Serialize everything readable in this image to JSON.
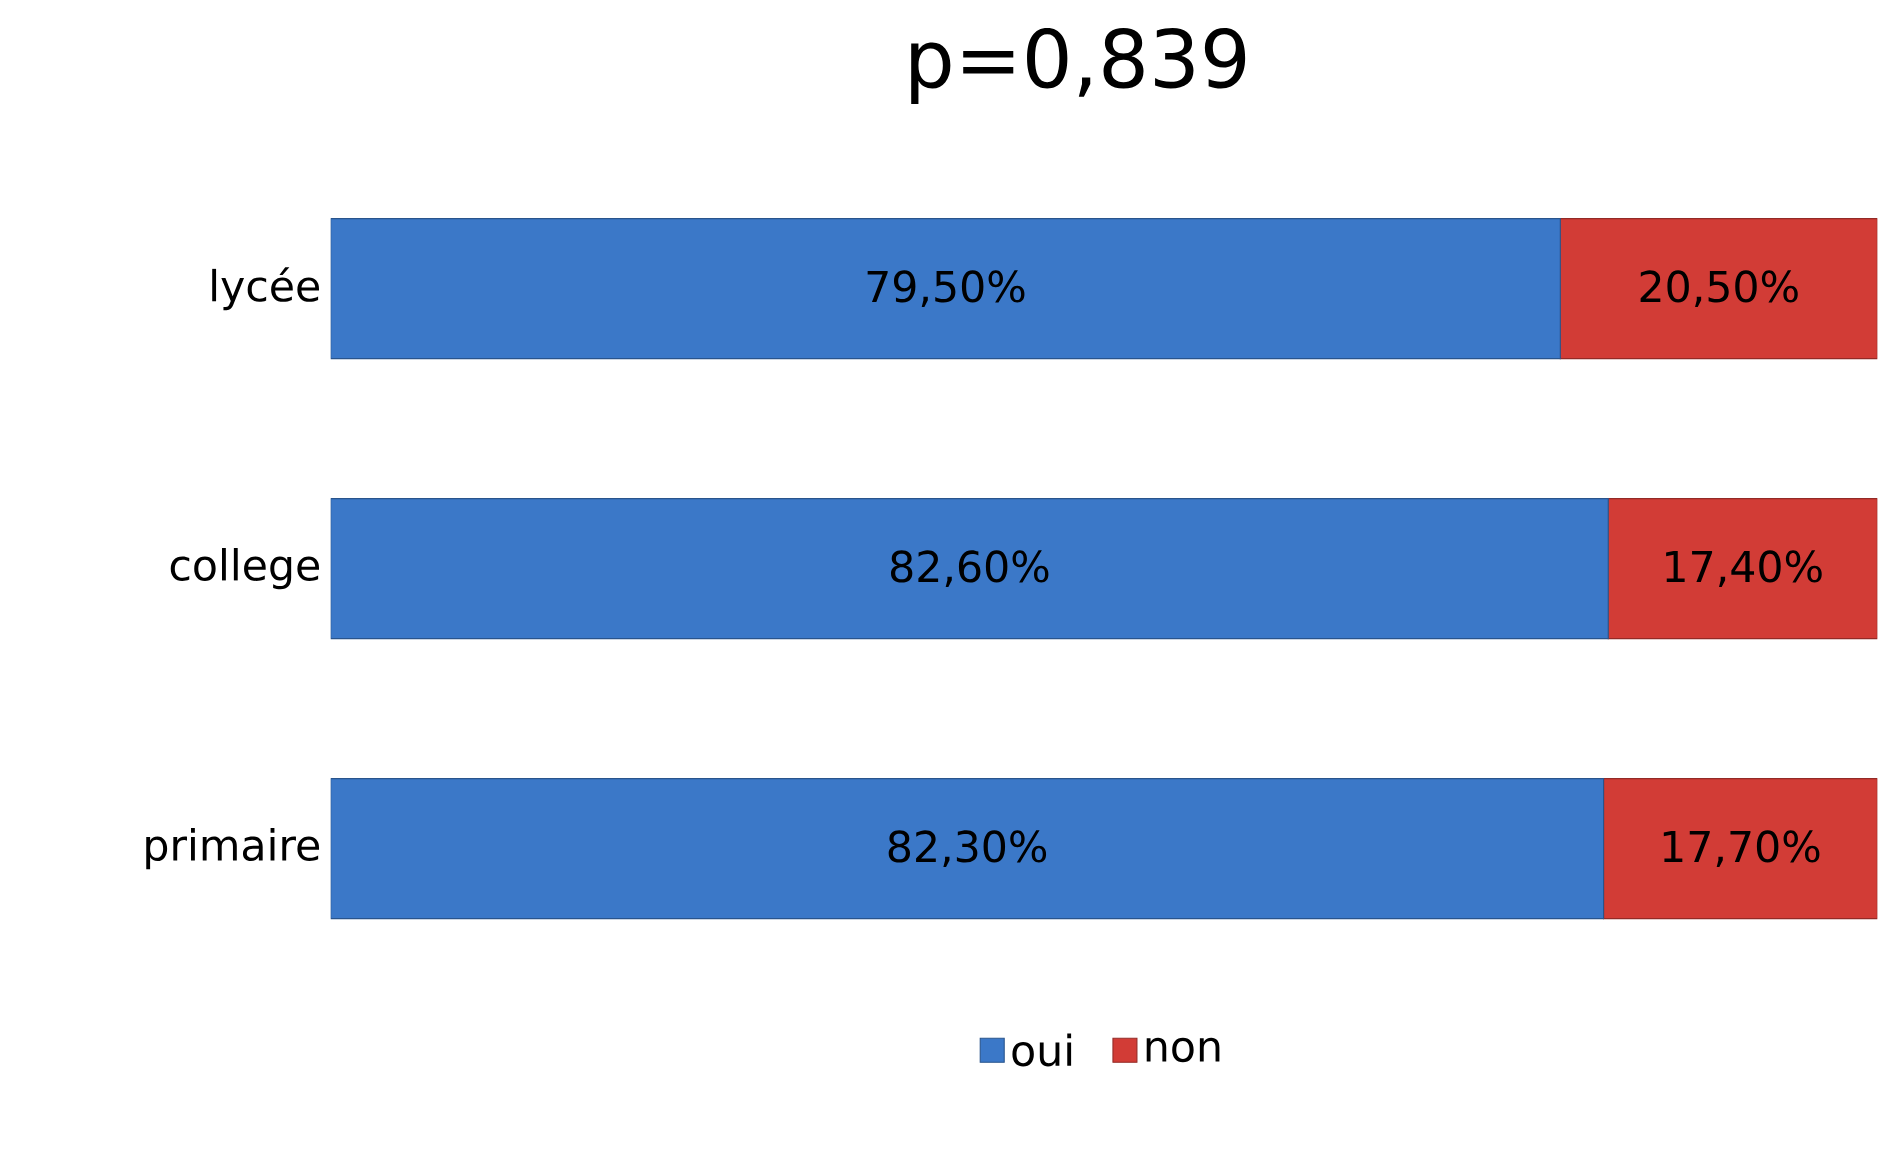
{
  "chart_data": {
    "type": "bar",
    "orientation": "horizontal",
    "stacked": true,
    "title": "p=0,839",
    "categories": [
      "lycée",
      "college",
      "primaire"
    ],
    "series": [
      {
        "name": "oui",
        "color": "#3b78c8",
        "values": [
          79.5,
          82.6,
          82.3
        ],
        "value_labels": [
          "79,50%",
          "82,60%",
          "82,30%"
        ]
      },
      {
        "name": "non",
        "color": "#d23c36",
        "values": [
          20.5,
          17.4,
          17.7
        ],
        "value_labels": [
          "20,50%",
          "17,40%",
          "17,70%"
        ]
      }
    ],
    "legend": "bottom",
    "tick_labels": "y"
  }
}
